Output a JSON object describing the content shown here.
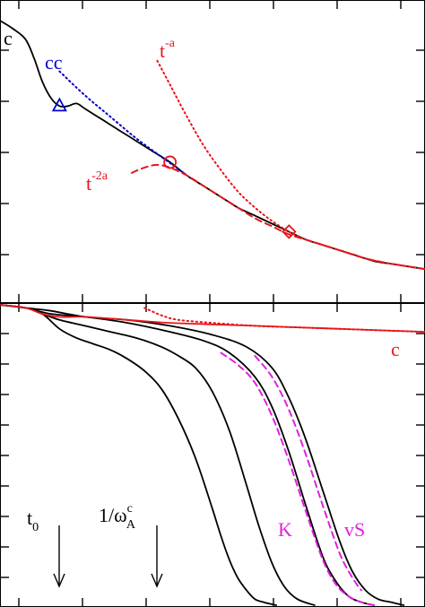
{
  "chart_data": [
    {
      "panel": "top",
      "type": "line",
      "title": "",
      "xlabel": "",
      "ylabel": "",
      "grid": false,
      "ticks_labeled": false,
      "colors": {
        "black": "#000000",
        "blue": "#0000cc",
        "red": "#e8141b"
      },
      "annotations": [
        {
          "text": "c",
          "color": "#000000"
        },
        {
          "text": "cc",
          "color": "#0000cc"
        },
        {
          "base": "t",
          "sup": "-a",
          "color": "#e8141b"
        },
        {
          "base": "t",
          "sup": "-2a",
          "color": "#e8141b"
        }
      ],
      "markers": [
        {
          "shape": "triangle",
          "color": "#0000cc",
          "x": 0.14,
          "y": 0.67
        },
        {
          "shape": "circle",
          "color": "#e8141b",
          "x": 0.4,
          "y": 0.46
        },
        {
          "shape": "diamond",
          "color": "#e8141b",
          "x": 0.68,
          "y": 0.2
        }
      ],
      "xlim": [
        0,
        1
      ],
      "ylim": [
        0,
        1
      ],
      "series": [
        {
          "style": "solid",
          "color": "#000000",
          "x": [
            0,
            0.03,
            0.06,
            0.08,
            0.1,
            0.12,
            0.14,
            0.16,
            0.18,
            0.2,
            0.24,
            0.28,
            0.32,
            0.36,
            0.4,
            0.44,
            0.48,
            0.52,
            0.56,
            0.6,
            0.64,
            0.68,
            0.72,
            0.76,
            0.8,
            0.84,
            0.88,
            0.92,
            0.96,
            1.0
          ],
          "y": [
            0.99,
            0.96,
            0.92,
            0.85,
            0.76,
            0.7,
            0.67,
            0.67,
            0.68,
            0.66,
            0.62,
            0.58,
            0.54,
            0.5,
            0.46,
            0.41,
            0.37,
            0.33,
            0.29,
            0.26,
            0.23,
            0.2,
            0.17,
            0.15,
            0.13,
            0.11,
            0.09,
            0.08,
            0.07,
            0.06
          ]
        },
        {
          "style": "dotted",
          "color": "#0000cc",
          "x": [
            0.14,
            0.2,
            0.26,
            0.32,
            0.38,
            0.44
          ],
          "y": [
            0.8,
            0.71,
            0.63,
            0.55,
            0.48,
            0.41
          ]
        },
        {
          "style": "dotted",
          "color": "#e8141b",
          "x": [
            0.37,
            0.4,
            0.44,
            0.48,
            0.52,
            0.56,
            0.6,
            0.64,
            0.68,
            0.72,
            0.76,
            0.8,
            0.86,
            0.92,
            1.0
          ],
          "y": [
            0.84,
            0.75,
            0.63,
            0.52,
            0.43,
            0.35,
            0.29,
            0.24,
            0.2,
            0.17,
            0.15,
            0.13,
            0.1,
            0.08,
            0.06
          ]
        },
        {
          "style": "dashed",
          "color": "#e8141b",
          "x": [
            0.31,
            0.34,
            0.37,
            0.4,
            0.44,
            0.48,
            0.52,
            0.56,
            0.6,
            0.64,
            0.68,
            0.72,
            0.76,
            0.8,
            0.86,
            0.92,
            1.0
          ],
          "y": [
            0.42,
            0.44,
            0.45,
            0.44,
            0.41,
            0.37,
            0.33,
            0.29,
            0.25,
            0.22,
            0.19,
            0.17,
            0.15,
            0.13,
            0.1,
            0.08,
            0.06
          ]
        }
      ]
    },
    {
      "panel": "bottom",
      "type": "line",
      "title": "",
      "xlabel": "",
      "ylabel": "",
      "grid": false,
      "ticks_labeled": false,
      "colors": {
        "black": "#000000",
        "red": "#e8141b",
        "magenta": "#e020e0"
      },
      "annotations": [
        {
          "text": "c",
          "color": "#e8141b"
        },
        {
          "text": "K",
          "color": "#e020e0"
        },
        {
          "text": "vS",
          "color": "#e020e0"
        },
        {
          "base": "t",
          "sub": "0",
          "color": "#000000",
          "arrow": "down"
        },
        {
          "base": "1/ω",
          "sup": "c",
          "sub": "A",
          "color": "#000000",
          "arrow": "down"
        }
      ],
      "xlim": [
        0,
        1
      ],
      "ylim": [
        0,
        1
      ],
      "series": [
        {
          "style": "solid",
          "color": "#000000",
          "x": [
            0,
            0.06,
            0.1,
            0.14,
            0.18,
            0.22,
            0.26,
            0.3,
            0.34,
            0.38,
            0.42,
            0.46,
            0.5,
            0.52,
            0.54,
            0.56,
            0.58,
            0.6,
            0.62,
            0.65
          ],
          "y": [
            1.0,
            0.99,
            0.97,
            0.92,
            0.89,
            0.87,
            0.85,
            0.82,
            0.78,
            0.72,
            0.62,
            0.49,
            0.32,
            0.23,
            0.15,
            0.09,
            0.05,
            0.02,
            0.01,
            0.0
          ]
        },
        {
          "style": "solid",
          "color": "#000000",
          "x": [
            0,
            0.06,
            0.1,
            0.14,
            0.2,
            0.26,
            0.32,
            0.38,
            0.42,
            0.46,
            0.5,
            0.54,
            0.58,
            0.61,
            0.64,
            0.67,
            0.7,
            0.74
          ],
          "y": [
            1.0,
            0.99,
            0.97,
            0.95,
            0.93,
            0.91,
            0.89,
            0.86,
            0.83,
            0.79,
            0.71,
            0.58,
            0.4,
            0.26,
            0.14,
            0.06,
            0.02,
            0.0
          ]
        },
        {
          "style": "solid",
          "color": "#000000",
          "x": [
            0,
            0.06,
            0.12,
            0.2,
            0.3,
            0.4,
            0.48,
            0.54,
            0.6,
            0.64,
            0.68,
            0.72,
            0.76,
            0.79,
            0.82,
            0.85,
            0.88
          ],
          "y": [
            1.0,
            0.99,
            0.97,
            0.96,
            0.94,
            0.91,
            0.88,
            0.84,
            0.76,
            0.66,
            0.51,
            0.33,
            0.16,
            0.08,
            0.03,
            0.01,
            0.0
          ]
        },
        {
          "style": "solid",
          "color": "#000000",
          "x": [
            0,
            0.06,
            0.12,
            0.2,
            0.3,
            0.4,
            0.5,
            0.58,
            0.64,
            0.68,
            0.72,
            0.76,
            0.8,
            0.83,
            0.86,
            0.89,
            0.92,
            0.95
          ],
          "y": [
            1.0,
            0.99,
            0.98,
            0.96,
            0.95,
            0.93,
            0.9,
            0.86,
            0.79,
            0.69,
            0.55,
            0.38,
            0.21,
            0.11,
            0.05,
            0.02,
            0.01,
            0.0
          ]
        },
        {
          "style": "solid",
          "color": "#e8141b",
          "x": [
            0,
            0.06,
            0.1,
            0.14,
            0.2,
            0.3,
            0.4,
            0.5,
            0.6,
            0.7,
            0.8,
            0.9,
            1.0
          ],
          "y": [
            1.0,
            0.99,
            0.97,
            0.96,
            0.96,
            0.95,
            0.94,
            0.935,
            0.93,
            0.925,
            0.92,
            0.915,
            0.91
          ]
        },
        {
          "style": "dotted",
          "color": "#e8141b",
          "x": [
            0.34,
            0.38,
            0.42,
            0.5,
            0.6,
            0.7,
            0.8,
            0.9,
            1.0
          ],
          "y": [
            0.99,
            0.965,
            0.95,
            0.94,
            0.93,
            0.925,
            0.92,
            0.915,
            0.91
          ]
        },
        {
          "style": "dashed",
          "color": "#e020e0",
          "x": [
            0.52,
            0.56,
            0.6,
            0.64,
            0.68,
            0.72,
            0.76,
            0.79,
            0.82,
            0.85,
            0.88
          ],
          "y": [
            0.84,
            0.8,
            0.74,
            0.63,
            0.48,
            0.31,
            0.15,
            0.07,
            0.03,
            0.01,
            0.0
          ]
        },
        {
          "style": "dashed",
          "color": "#e020e0",
          "x": [
            0.6,
            0.64,
            0.68,
            0.72,
            0.76,
            0.8,
            0.83,
            0.85
          ],
          "y": [
            0.83,
            0.76,
            0.65,
            0.5,
            0.33,
            0.17,
            0.09,
            0.05
          ]
        }
      ]
    }
  ]
}
